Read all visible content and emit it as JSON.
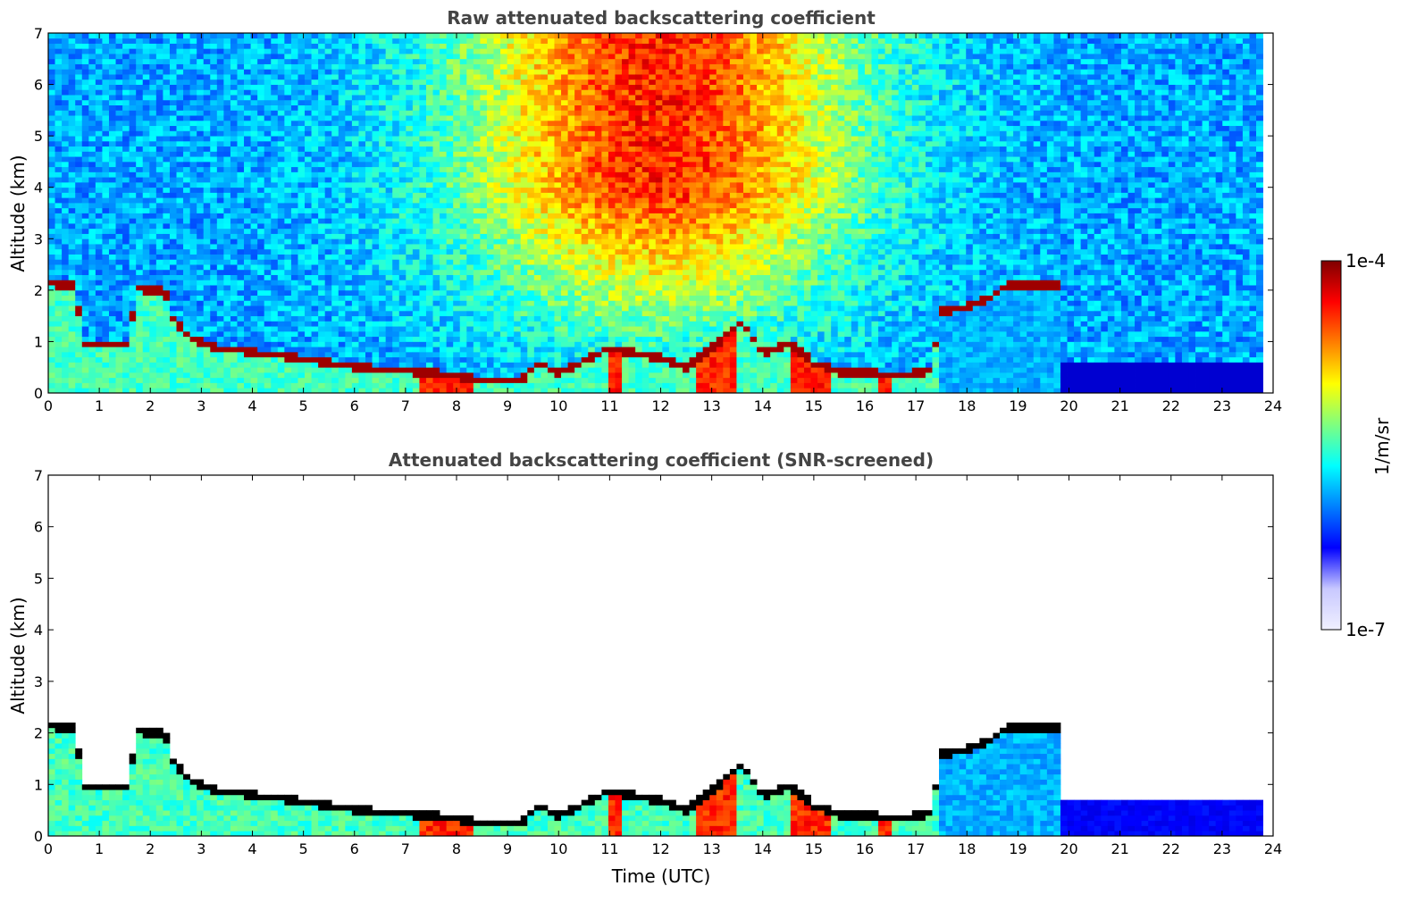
{
  "colors": {
    "jet": [
      "#00007f",
      "#0000ff",
      "#007fff",
      "#00ffff",
      "#7fff7f",
      "#ffff00",
      "#ff7f00",
      "#ff0000",
      "#7f0000"
    ],
    "layer_core": "#7f0000",
    "screened_layer_core": "#000000",
    "background": "#ffffff"
  },
  "colorbar": {
    "label": "1/m/sr",
    "max_label": "1e-4",
    "min_label": "1e-7",
    "scale": "log",
    "range": [
      1e-07,
      0.0001
    ]
  },
  "chart_data": [
    {
      "type": "heatmap",
      "title": "Raw attenuated backscattering coefficient",
      "xlabel": "",
      "ylabel": "Altitude (km)",
      "xlim": [
        0,
        24
      ],
      "ylim": [
        0,
        7
      ],
      "xticks": [
        "0",
        "1",
        "2",
        "3",
        "4",
        "5",
        "6",
        "7",
        "8",
        "9",
        "10",
        "11",
        "12",
        "13",
        "14",
        "15",
        "16",
        "17",
        "18",
        "19",
        "20",
        "21",
        "22",
        "23",
        "24"
      ],
      "yticks": [
        "0",
        "1",
        "2",
        "3",
        "4",
        "5",
        "6",
        "7"
      ],
      "data_end_hour": 23.8,
      "screened": false,
      "layer_top_km": [
        [
          0,
          2.15
        ],
        [
          0.55,
          2.1
        ],
        [
          0.65,
          1.0
        ],
        [
          1.6,
          0.95
        ],
        [
          1.7,
          2.05
        ],
        [
          2.3,
          2.0
        ],
        [
          2.4,
          1.5
        ],
        [
          2.8,
          1.1
        ],
        [
          3.3,
          0.9
        ],
        [
          4.5,
          0.75
        ],
        [
          5.5,
          0.6
        ],
        [
          6.5,
          0.48
        ],
        [
          7.5,
          0.42
        ],
        [
          8.3,
          0.3
        ],
        [
          9.3,
          0.3
        ],
        [
          9.6,
          0.6
        ],
        [
          10.0,
          0.4
        ],
        [
          10.6,
          0.7
        ],
        [
          11.0,
          0.9
        ],
        [
          11.5,
          0.8
        ],
        [
          12.0,
          0.7
        ],
        [
          12.5,
          0.5
        ],
        [
          13.0,
          0.9
        ],
        [
          13.6,
          1.4
        ],
        [
          14.0,
          0.8
        ],
        [
          14.5,
          1.0
        ],
        [
          15.0,
          0.6
        ],
        [
          15.6,
          0.4
        ],
        [
          16.2,
          0.4
        ],
        [
          16.5,
          0.35
        ],
        [
          17.3,
          0.45
        ],
        [
          17.5,
          1.6
        ],
        [
          18.2,
          1.75
        ],
        [
          18.9,
          2.15
        ],
        [
          19.1,
          2.1
        ],
        [
          19.35,
          2.12
        ],
        [
          19.8,
          2.1
        ]
      ]
    },
    {
      "type": "heatmap",
      "title": "Attenuated backscattering coefficient (SNR-screened)",
      "xlabel": "Time (UTC)",
      "ylabel": "Altitude (km)",
      "xlim": [
        0,
        24
      ],
      "ylim": [
        0,
        7
      ],
      "xticks": [
        "0",
        "1",
        "2",
        "3",
        "4",
        "5",
        "6",
        "7",
        "8",
        "9",
        "10",
        "11",
        "12",
        "13",
        "14",
        "15",
        "16",
        "17",
        "18",
        "19",
        "20",
        "21",
        "22",
        "23",
        "24"
      ],
      "yticks": [
        "0",
        "1",
        "2",
        "3",
        "4",
        "5",
        "6",
        "7"
      ],
      "data_end_hour": 23.8,
      "screened": true
    }
  ]
}
